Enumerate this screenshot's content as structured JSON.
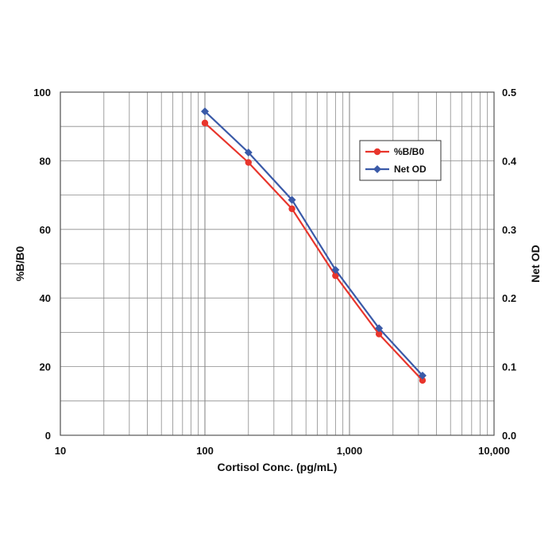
{
  "chart_data": {
    "type": "line",
    "xscale": "log",
    "xlim": [
      10,
      10000
    ],
    "x_ticks": [
      "10",
      "100",
      "1,000",
      "10,000"
    ],
    "xlabel": "Cortisol Conc. (pg/mL)",
    "ylabel": "%B/B0",
    "ylim": [
      0,
      100
    ],
    "y_ticks": [
      "0",
      "20",
      "40",
      "60",
      "80",
      "100"
    ],
    "y2label": "Net OD",
    "y2lim": [
      0,
      0.5
    ],
    "y2_ticks": [
      "0.0",
      "0.1",
      "0.2",
      "0.3",
      "0.4",
      "0.5"
    ],
    "grid": true,
    "legend_position": "top-right",
    "series": [
      {
        "name": "%B/B0",
        "axis": "left",
        "color": "#e8352c",
        "marker": "circle",
        "x": [
          100,
          200,
          400,
          800,
          1600,
          3200
        ],
        "values": [
          91,
          79.5,
          66,
          46.5,
          29.5,
          16
        ]
      },
      {
        "name": "Net OD",
        "axis": "right",
        "color": "#3a5aa8",
        "marker": "diamond",
        "x": [
          100,
          200,
          400,
          800,
          1600,
          3200
        ],
        "values": [
          0.472,
          0.412,
          0.343,
          0.241,
          0.156,
          0.087
        ]
      }
    ]
  }
}
